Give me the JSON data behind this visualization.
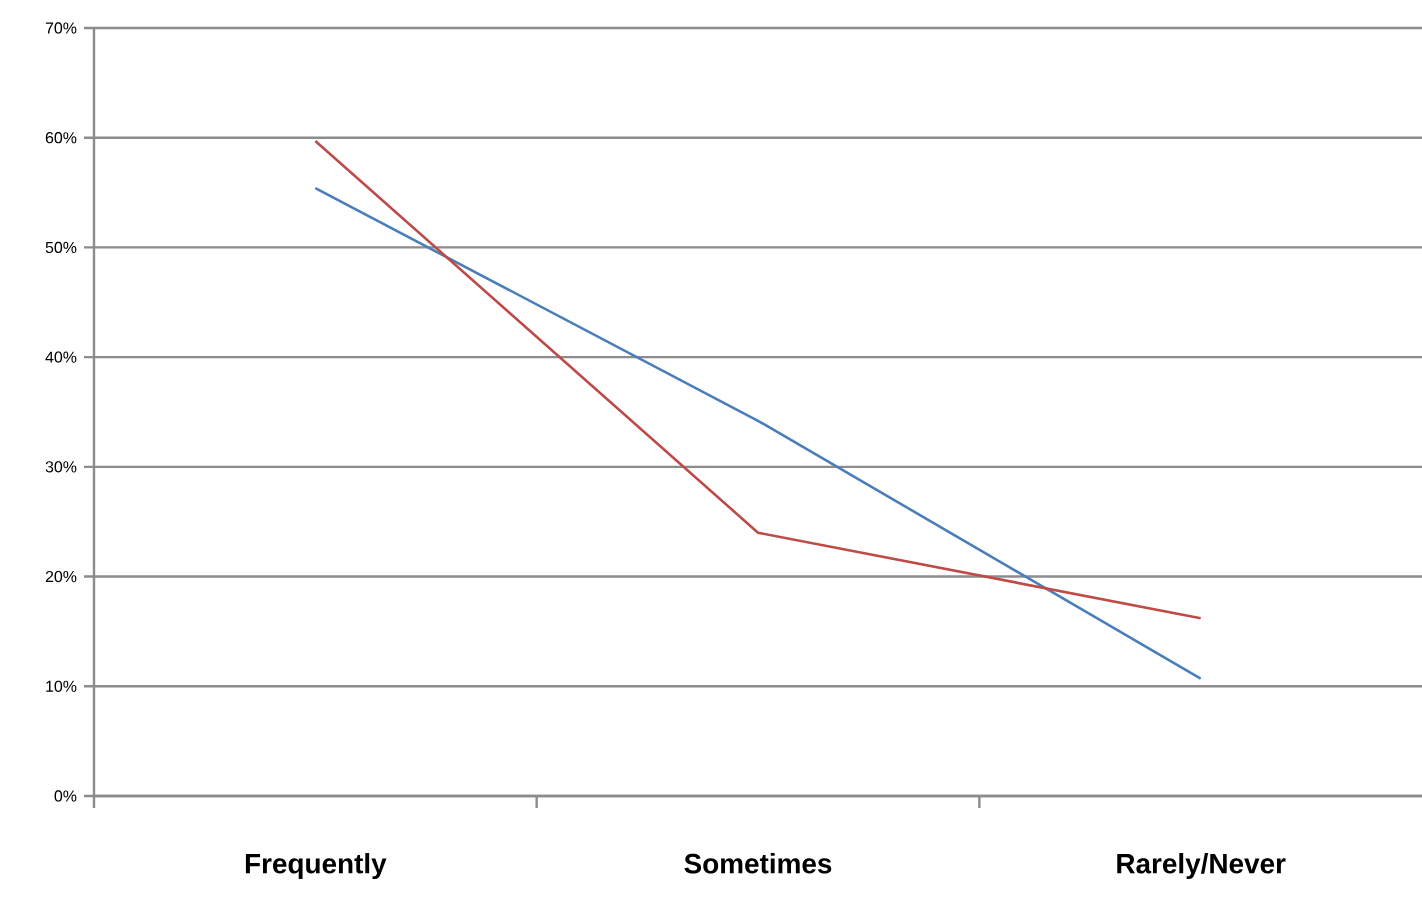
{
  "chart_data": {
    "type": "line",
    "categories": [
      "Frequently",
      "Sometimes",
      "Rarely/Never"
    ],
    "series": [
      {
        "color": "#4a7ebb",
        "values": [
          55.4,
          34.2,
          10.7
        ]
      },
      {
        "color": "#be4b48",
        "values": [
          59.7,
          24.0,
          16.2
        ]
      }
    ],
    "ylim": [
      0,
      70
    ],
    "yticks": [
      {
        "value": 0,
        "label": "0%"
      },
      {
        "value": 10,
        "label": "10%"
      },
      {
        "value": 20,
        "label": "20%"
      },
      {
        "value": 30,
        "label": "30%"
      },
      {
        "value": 40,
        "label": "40%"
      },
      {
        "value": 50,
        "label": "50%"
      },
      {
        "value": 60,
        "label": "60%"
      },
      {
        "value": 70,
        "label": "70%"
      }
    ],
    "grid": "y",
    "marker": "none",
    "line_style": "solid"
  }
}
